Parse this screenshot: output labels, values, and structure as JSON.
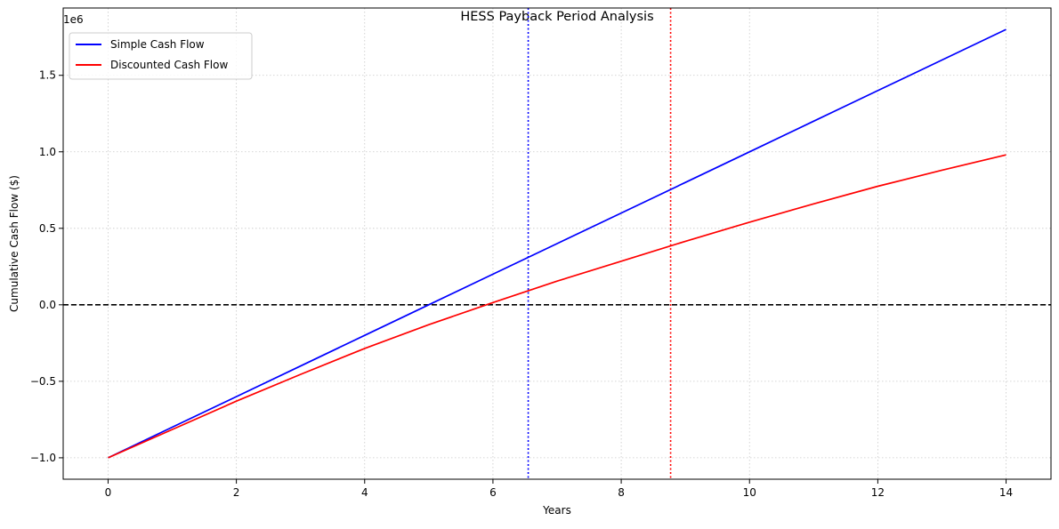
{
  "chart_data": {
    "type": "line",
    "title": "HESS Payback Period Analysis",
    "xlabel": "Years",
    "ylabel": "Cumulative Cash Flow ($)",
    "y_offset_label": "1e6",
    "xlim": [
      -0.7,
      14.7
    ],
    "ylim": [
      -1140000,
      1940000
    ],
    "x_ticks": [
      0,
      2,
      4,
      6,
      8,
      10,
      12,
      14
    ],
    "x_tick_labels": [
      "0",
      "2",
      "4",
      "6",
      "8",
      "10",
      "12",
      "14"
    ],
    "y_ticks": [
      -1000000,
      -500000,
      0,
      500000,
      1000000,
      1500000
    ],
    "y_tick_labels": [
      "−1.0",
      "−0.5",
      "0.0",
      "0.5",
      "1.0",
      "1.5"
    ],
    "grid": true,
    "legend_position": "top-left",
    "series": [
      {
        "name": "Simple Cash Flow",
        "color": "#0000ff",
        "x": [
          0,
          1,
          2,
          3,
          4,
          5,
          6,
          7,
          8,
          9,
          10,
          11,
          12,
          13,
          14
        ],
        "values": [
          -1000000,
          -800000,
          -600000,
          -400000,
          -200000,
          0,
          200000,
          400000,
          600000,
          800000,
          1000000,
          1200000,
          1400000,
          1600000,
          1800000
        ]
      },
      {
        "name": "Discounted Cash Flow",
        "color": "#ff0000",
        "x": [
          0,
          1,
          2,
          3,
          4,
          5,
          6,
          7,
          8,
          9,
          10,
          11,
          12,
          13,
          14
        ],
        "values": [
          -1000000,
          -815000,
          -630000,
          -455000,
          -285000,
          -130000,
          15000,
          155000,
          285000,
          415000,
          540000,
          660000,
          775000,
          880000,
          980000
        ]
      }
    ],
    "reference_lines": [
      {
        "orientation": "horizontal",
        "value": 0,
        "color": "#000000",
        "style": "dashed"
      },
      {
        "orientation": "vertical",
        "value": 6.55,
        "color": "#0000ff",
        "style": "dotted"
      },
      {
        "orientation": "vertical",
        "value": 8.77,
        "color": "#ff0000",
        "style": "dotted"
      }
    ]
  }
}
